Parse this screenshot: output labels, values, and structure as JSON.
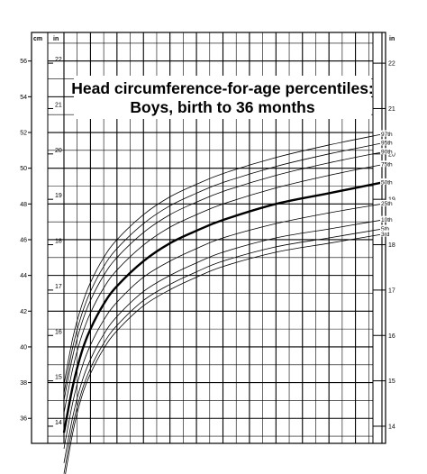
{
  "chart_data": {
    "type": "line",
    "title": "Head circumference-for-age percentiles:",
    "subtitle": "Boys, birth to 36 months",
    "left_units": [
      "cm",
      "in"
    ],
    "right_units": [
      "in"
    ],
    "cm_axis": {
      "ylim": [
        34.6,
        57.6
      ],
      "ticks": [
        36,
        38,
        40,
        42,
        44,
        46,
        48,
        50,
        52,
        54,
        56
      ]
    },
    "in_axis": {
      "ticks": [
        14,
        15,
        16,
        17,
        18,
        19,
        20,
        21,
        22
      ]
    },
    "x_axis": {
      "xlim": [
        0,
        36
      ],
      "major_step": 1.5,
      "minor_step": 0.5
    },
    "grid": true,
    "series": [
      {
        "name": "97th",
        "x": [
          0,
          1,
          2,
          3,
          4.5,
          6,
          9,
          12,
          15,
          18,
          24,
          30,
          36
        ],
        "values": [
          37.9,
          40.5,
          42.3,
          43.6,
          45.0,
          46.0,
          47.4,
          48.4,
          49.1,
          49.7,
          50.6,
          51.3,
          51.9
        ]
      },
      {
        "name": "95th",
        "x": [
          0,
          1,
          2,
          3,
          4.5,
          6,
          9,
          12,
          15,
          18,
          24,
          30,
          36
        ],
        "values": [
          37.4,
          40.0,
          41.8,
          43.1,
          44.5,
          45.5,
          46.9,
          47.9,
          48.6,
          49.2,
          50.1,
          50.8,
          51.4
        ]
      },
      {
        "name": "90th",
        "x": [
          0,
          1,
          2,
          3,
          4.5,
          6,
          9,
          12,
          15,
          18,
          24,
          30,
          36
        ],
        "values": [
          37.0,
          39.5,
          41.3,
          42.6,
          44.0,
          45.0,
          46.4,
          47.4,
          48.1,
          48.7,
          49.6,
          50.3,
          50.9
        ]
      },
      {
        "name": "75th",
        "x": [
          0,
          1,
          2,
          3,
          4.5,
          6,
          9,
          12,
          15,
          18,
          24,
          30,
          36
        ],
        "values": [
          36.3,
          38.8,
          40.6,
          41.9,
          43.3,
          44.3,
          45.7,
          46.7,
          47.4,
          48.0,
          48.9,
          49.6,
          50.2
        ]
      },
      {
        "name": "50th",
        "x": [
          0,
          1,
          2,
          3,
          4.5,
          6,
          9,
          12,
          15,
          18,
          24,
          30,
          36
        ],
        "values": [
          35.2,
          37.8,
          39.7,
          41.0,
          42.4,
          43.4,
          44.8,
          45.8,
          46.5,
          47.1,
          48.0,
          48.6,
          49.2
        ]
      },
      {
        "name": "25th",
        "x": [
          0,
          1,
          2,
          3,
          4.5,
          6,
          9,
          12,
          15,
          18,
          24,
          30,
          36
        ],
        "values": [
          34.3,
          36.9,
          38.8,
          40.1,
          41.5,
          42.5,
          43.9,
          44.8,
          45.5,
          46.1,
          46.9,
          47.5,
          48.0
        ]
      },
      {
        "name": "10th",
        "x": [
          0,
          1,
          2,
          3,
          4.5,
          6,
          9,
          12,
          15,
          18,
          24,
          30,
          36
        ],
        "values": [
          33.5,
          36.1,
          38.0,
          39.3,
          40.7,
          41.7,
          43.1,
          44.0,
          44.7,
          45.3,
          46.1,
          46.6,
          47.1
        ]
      },
      {
        "name": "5th",
        "x": [
          0,
          1,
          2,
          3,
          4.5,
          6,
          9,
          12,
          15,
          18,
          24,
          30,
          36
        ],
        "values": [
          32.9,
          35.6,
          37.5,
          38.8,
          40.2,
          41.2,
          42.6,
          43.5,
          44.2,
          44.8,
          45.6,
          46.1,
          46.6
        ]
      },
      {
        "name": "3rd",
        "x": [
          0,
          1,
          2,
          3,
          4.5,
          6,
          9,
          12,
          15,
          18,
          24,
          30,
          36
        ],
        "values": [
          32.4,
          35.2,
          37.2,
          38.5,
          39.9,
          40.9,
          42.3,
          43.2,
          43.9,
          44.5,
          45.3,
          45.8,
          46.3
        ]
      }
    ],
    "highlight_series": "50th",
    "line_color": "#000000",
    "grid_color": "#000000"
  }
}
